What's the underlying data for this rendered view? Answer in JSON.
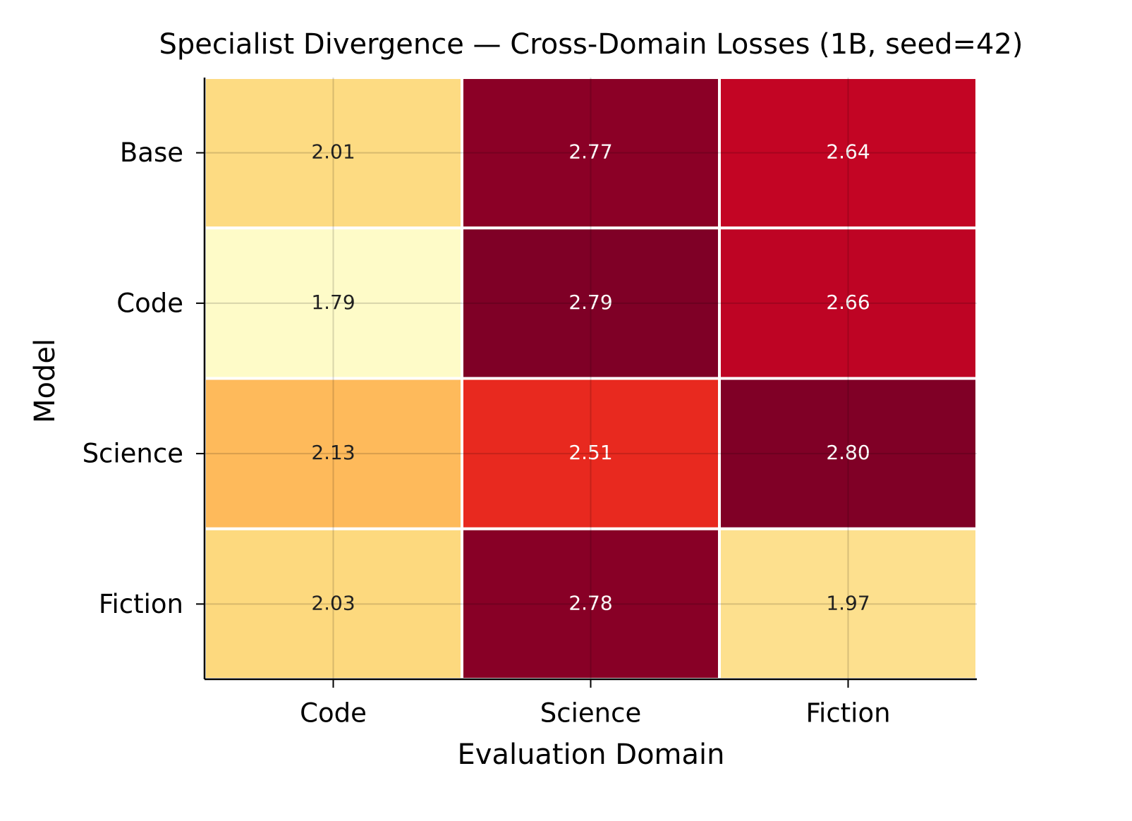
{
  "chart_data": {
    "type": "heatmap",
    "title": "Specialist Divergence — Cross-Domain Losses (1B, seed=42)",
    "x_label": "Evaluation Domain",
    "y_label": "Model",
    "x_categories": [
      "Code",
      "Science",
      "Fiction"
    ],
    "y_categories": [
      "Base",
      "Code",
      "Science",
      "Fiction"
    ],
    "values": [
      [
        2.01,
        2.77,
        2.64
      ],
      [
        1.79,
        2.79,
        2.66
      ],
      [
        2.13,
        2.51,
        2.8
      ],
      [
        2.03,
        2.78,
        1.97
      ]
    ],
    "value_labels": [
      [
        "2.01",
        "2.77",
        "2.64"
      ],
      [
        "1.79",
        "2.79",
        "2.66"
      ],
      [
        "2.13",
        "2.51",
        "2.80"
      ],
      [
        "2.03",
        "2.78",
        "1.97"
      ]
    ],
    "colors": [
      [
        "#fddb82",
        "#8b0026",
        "#c30524"
      ],
      [
        "#fefbc8",
        "#7f0026",
        "#be0424"
      ],
      [
        "#feba5b",
        "#e8291f",
        "#800026"
      ],
      [
        "#fdd97e",
        "#880026",
        "#fde08e"
      ]
    ],
    "grid": true
  }
}
